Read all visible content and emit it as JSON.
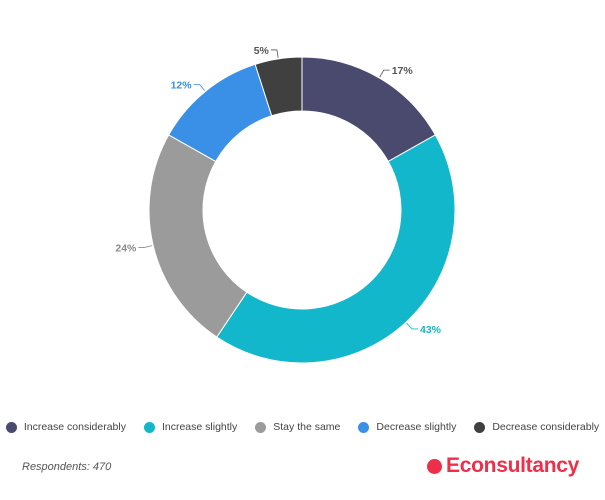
{
  "chart_data": {
    "type": "pie",
    "variant": "donut",
    "title": "",
    "categories": [
      "Increase considerably",
      "Increase slightly",
      "Stay the same",
      "Decrease slightly",
      "Decrease considerably"
    ],
    "values": [
      17,
      43,
      24,
      12,
      5
    ],
    "labels": [
      "17%",
      "43%",
      "24%",
      "12%",
      "5%"
    ],
    "colors": [
      "#4a4a6e",
      "#12b7cb",
      "#9b9b9b",
      "#3a8fe6",
      "#404040"
    ],
    "label_colors": [
      "#555555",
      "#12b7cb",
      "#8a8a8a",
      "#3a8fe6",
      "#555555"
    ],
    "legend_position": "bottom"
  },
  "footnote": "Respondents: 470",
  "brand": {
    "name": "Econsultancy",
    "color": "#ee2f4a"
  }
}
